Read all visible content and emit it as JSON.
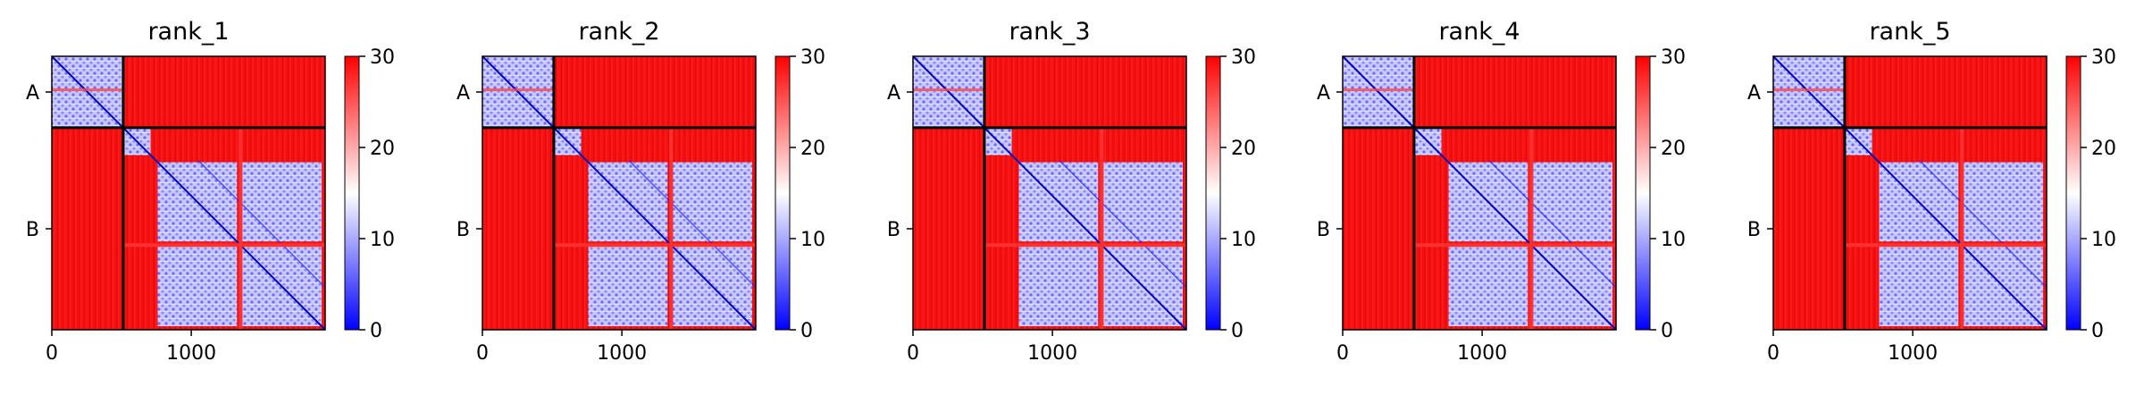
{
  "chart_data": {
    "type": "heatmap",
    "colorbar": {
      "colormap": "bwr",
      "vmin": 0,
      "vmax": 30,
      "ticks": [
        0,
        10,
        20,
        30
      ],
      "colors": {
        "low": "#0000ff",
        "mid": "#ffffff",
        "high": "#ff0000"
      }
    },
    "matrix_size": 1960,
    "chain_boundary": 512,
    "chain_labels": [
      "A",
      "B"
    ],
    "chain_label_positions": [
      256,
      1236
    ],
    "x_ticks": [
      0,
      1000
    ],
    "x_tick_labels": [
      "0",
      "1000"
    ],
    "panels": [
      {
        "title": "rank_1"
      },
      {
        "title": "rank_2"
      },
      {
        "title": "rank_3"
      },
      {
        "title": "rank_4"
      },
      {
        "title": "rank_5"
      }
    ]
  }
}
